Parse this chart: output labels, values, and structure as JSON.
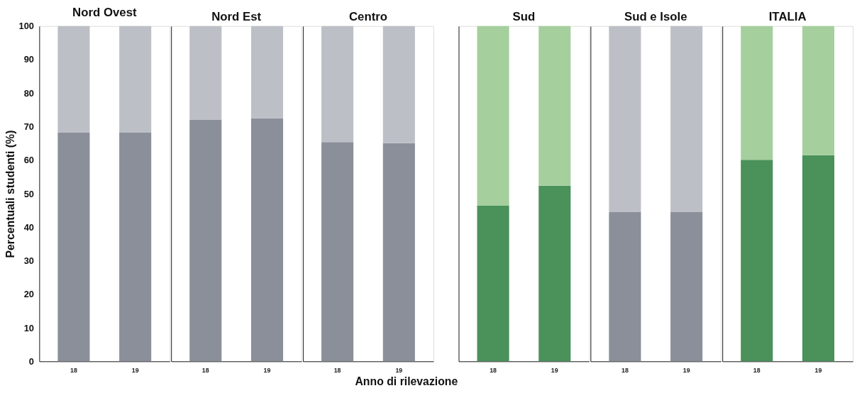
{
  "chart_data": [
    {
      "type": "bar",
      "title": "Nord Ovest",
      "ylabel": "Percentuali studenti (%)",
      "categories": [
        "18",
        "19"
      ],
      "stacked": true,
      "ylim": [
        0,
        100
      ],
      "yticks": [
        0,
        10,
        20,
        30,
        40,
        50,
        60,
        70,
        80,
        90,
        100
      ],
      "grid": false,
      "series": [
        {
          "color": "#8a8f99",
          "values": [
            68.2,
            68.2
          ]
        },
        {
          "color": "#bcc0c6",
          "values": [
            31.8,
            31.8
          ]
        }
      ]
    },
    {
      "type": "bar",
      "title": "Nord Est",
      "categories": [
        "18",
        "19"
      ],
      "stacked": true,
      "ylim": [
        0,
        100
      ],
      "tick_labels": "x",
      "grid": false,
      "series": [
        {
          "color": "#8a8f99",
          "values": [
            72.1,
            72.5
          ]
        },
        {
          "color": "#bcc0c6",
          "values": [
            27.9,
            27.5
          ]
        }
      ]
    },
    {
      "type": "bar",
      "title": "Centro",
      "xlabel": "Anno di rilevazione",
      "categories": [
        "18",
        "19"
      ],
      "stacked": true,
      "ylim": [
        0,
        100
      ],
      "tick_labels": "x",
      "grid": false,
      "series": [
        {
          "color": "#8a8f99",
          "values": [
            65.4,
            65.1
          ]
        },
        {
          "color": "#bcc0c6",
          "values": [
            34.6,
            34.9
          ]
        }
      ]
    },
    {
      "type": "bar",
      "title": "Sud",
      "categories": [
        "18",
        "19"
      ],
      "stacked": true,
      "ylim": [
        0,
        100
      ],
      "tick_labels": "x",
      "grid": false,
      "series": [
        {
          "color": "#4a915a",
          "values": [
            46.5,
            52.4
          ]
        },
        {
          "color": "#a5cf9d",
          "values": [
            53.5,
            47.6
          ]
        }
      ]
    },
    {
      "type": "bar",
      "title": "Sud e Isole",
      "categories": [
        "18",
        "19"
      ],
      "stacked": true,
      "ylim": [
        0,
        100
      ],
      "tick_labels": "x",
      "grid": false,
      "series": [
        {
          "color": "#8a8f99",
          "values": [
            44.5,
            44.5
          ]
        },
        {
          "color": "#bcc0c6",
          "values": [
            55.5,
            55.5
          ]
        }
      ]
    },
    {
      "type": "bar",
      "title": "ITALIA",
      "categories": [
        "18",
        "19"
      ],
      "stacked": true,
      "ylim": [
        0,
        100
      ],
      "tick_labels": "x",
      "grid": false,
      "series": [
        {
          "color": "#4a915a",
          "values": [
            60.1,
            61.5
          ]
        },
        {
          "color": "#a5cf9d",
          "values": [
            39.9,
            38.5
          ]
        }
      ]
    }
  ]
}
